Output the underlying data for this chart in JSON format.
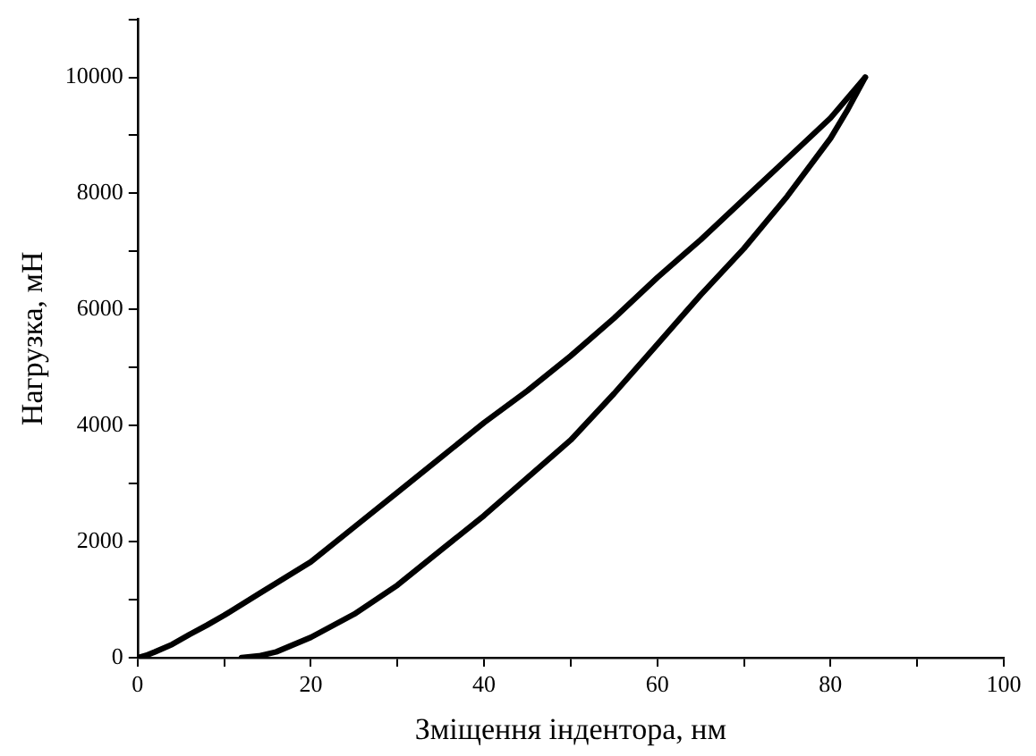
{
  "chart_data": {
    "type": "line",
    "xlabel": "Зміщення індентора, нм",
    "ylabel": "Нагрузка, мН",
    "xlim": [
      0,
      100
    ],
    "ylim": [
      0,
      11000
    ],
    "xticks": [
      0,
      {
        "value": 10,
        "label": null
      },
      20,
      {
        "value": 30,
        "label": null
      },
      40,
      {
        "value": 50,
        "label": null
      },
      60,
      {
        "value": 70,
        "label": null
      },
      80,
      {
        "value": 90,
        "label": null
      },
      100
    ],
    "yticks": [
      0,
      {
        "value": 1000,
        "label": null
      },
      2000,
      {
        "value": 3000,
        "label": null
      },
      4000,
      {
        "value": 5000,
        "label": null
      },
      6000,
      {
        "value": 7000,
        "label": null
      },
      8000,
      {
        "value": 9000,
        "label": null
      },
      10000,
      {
        "value": 11000,
        "label": null
      }
    ],
    "grid": false,
    "legend": false,
    "marker": "none",
    "line_style": "solid",
    "series": [
      {
        "color": "#000000",
        "x": [
          0,
          1,
          2,
          4,
          6,
          8,
          10,
          14,
          20,
          25,
          30,
          35,
          40,
          45,
          50,
          55,
          60,
          65,
          70,
          75,
          80,
          82,
          84
        ],
        "values": [
          0,
          40,
          100,
          230,
          400,
          560,
          730,
          1100,
          1650,
          2250,
          2850,
          3450,
          4050,
          4600,
          5200,
          5850,
          6550,
          7200,
          7900,
          8600,
          9300,
          9650,
          10000
        ]
      },
      {
        "color": "#000000",
        "x": [
          12,
          14,
          16,
          20,
          25,
          30,
          35,
          40,
          45,
          50,
          55,
          60,
          65,
          70,
          75,
          80,
          82,
          84
        ],
        "values": [
          0,
          30,
          100,
          350,
          750,
          1250,
          1850,
          2450,
          3100,
          3750,
          4550,
          5400,
          6250,
          7050,
          7950,
          8950,
          9450,
          10000
        ]
      }
    ]
  }
}
